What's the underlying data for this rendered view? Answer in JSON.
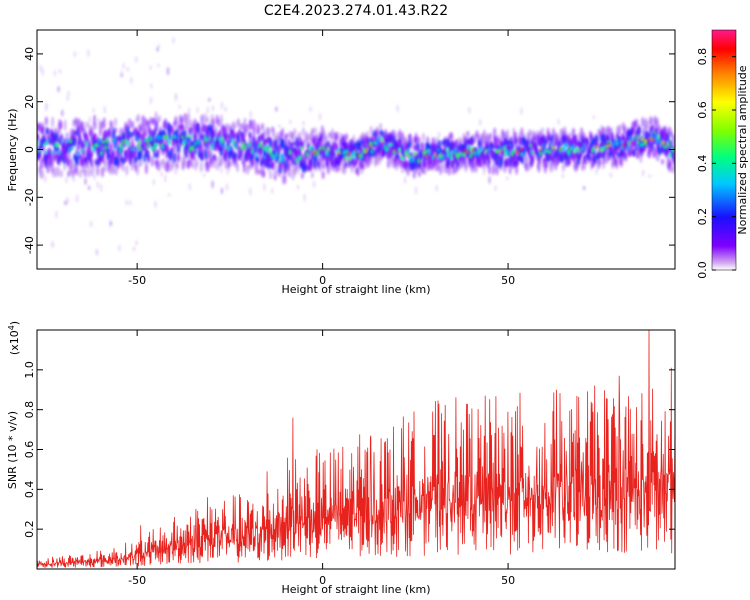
{
  "title": "C2E4.2023.274.01.43.R22",
  "chart_data": [
    {
      "type": "heatmap",
      "xlabel": "Height of straight line (km)",
      "ylabel": "Frequency (Hz)",
      "xlim": [
        -77,
        95
      ],
      "ylim": [
        -50,
        50
      ],
      "xticks": [
        -50,
        0,
        50
      ],
      "yticks": [
        -40,
        -20,
        0,
        20,
        40
      ],
      "colorbar": {
        "label": "Normalized spectral amplitude",
        "range": [
          0.0,
          0.9
        ],
        "ticks": [
          0.0,
          0.2,
          0.4,
          0.6,
          0.8
        ]
      },
      "center_frequency_trend": [
        {
          "x": -77,
          "y": 1
        },
        {
          "x": -60,
          "y": 1
        },
        {
          "x": -45,
          "y": 3
        },
        {
          "x": -30,
          "y": 3
        },
        {
          "x": -20,
          "y": 1
        },
        {
          "x": -10,
          "y": -3
        },
        {
          "x": 0,
          "y": -1
        },
        {
          "x": 10,
          "y": -2
        },
        {
          "x": 15,
          "y": 3
        },
        {
          "x": 20,
          "y": -1
        },
        {
          "x": 25,
          "y": -3
        },
        {
          "x": 30,
          "y": -2
        },
        {
          "x": 40,
          "y": -1
        },
        {
          "x": 50,
          "y": -1
        },
        {
          "x": 60,
          "y": 0
        },
        {
          "x": 70,
          "y": 0
        },
        {
          "x": 80,
          "y": 2
        },
        {
          "x": 90,
          "y": 5
        },
        {
          "x": 95,
          "y": -2
        }
      ]
    },
    {
      "type": "line",
      "xlabel": "Height of straight line (km)",
      "ylabel": "SNR (10 * v/v)",
      "y_multiplier": "(x10",
      "y_multiplier_exp": "4",
      "y_multiplier_close": ")",
      "xlim": [
        -77,
        95
      ],
      "ylim": [
        0,
        1.2
      ],
      "xticks": [
        -50,
        0,
        50
      ],
      "yticks": [
        0.2,
        0.4,
        0.6,
        0.8,
        1.0
      ],
      "ytick_labels": [
        "0.2",
        "0.4",
        "0.6",
        "0.8",
        "1.0"
      ],
      "series": [
        {
          "color": "#e8231e",
          "envelope": [
            {
              "x": -77,
              "y": 0.03
            },
            {
              "x": -60,
              "y": 0.05
            },
            {
              "x": -50,
              "y": 0.08
            },
            {
              "x": -40,
              "y": 0.14
            },
            {
              "x": -30,
              "y": 0.2
            },
            {
              "x": -20,
              "y": 0.2
            },
            {
              "x": -15,
              "y": 0.22
            },
            {
              "x": -10,
              "y": 0.3
            },
            {
              "x": 0,
              "y": 0.32
            },
            {
              "x": 10,
              "y": 0.36
            },
            {
              "x": 20,
              "y": 0.4
            },
            {
              "x": 30,
              "y": 0.45
            },
            {
              "x": 40,
              "y": 0.46
            },
            {
              "x": 50,
              "y": 0.47
            },
            {
              "x": 60,
              "y": 0.47
            },
            {
              "x": 70,
              "y": 0.48
            },
            {
              "x": 80,
              "y": 0.5
            },
            {
              "x": 90,
              "y": 0.5
            },
            {
              "x": 95,
              "y": 0.5
            }
          ],
          "peaks": [
            {
              "x": -49,
              "y": 0.22
            },
            {
              "x": -31,
              "y": 0.36
            },
            {
              "x": -15,
              "y": 0.49
            },
            {
              "x": -8,
              "y": 0.76
            },
            {
              "x": 13,
              "y": 0.67
            },
            {
              "x": 38,
              "y": 0.7
            },
            {
              "x": 50,
              "y": 0.79
            },
            {
              "x": 63,
              "y": 0.9
            },
            {
              "x": 80,
              "y": 0.97
            },
            {
              "x": 88,
              "y": 1.2
            },
            {
              "x": 94,
              "y": 1.01
            }
          ]
        }
      ]
    }
  ]
}
